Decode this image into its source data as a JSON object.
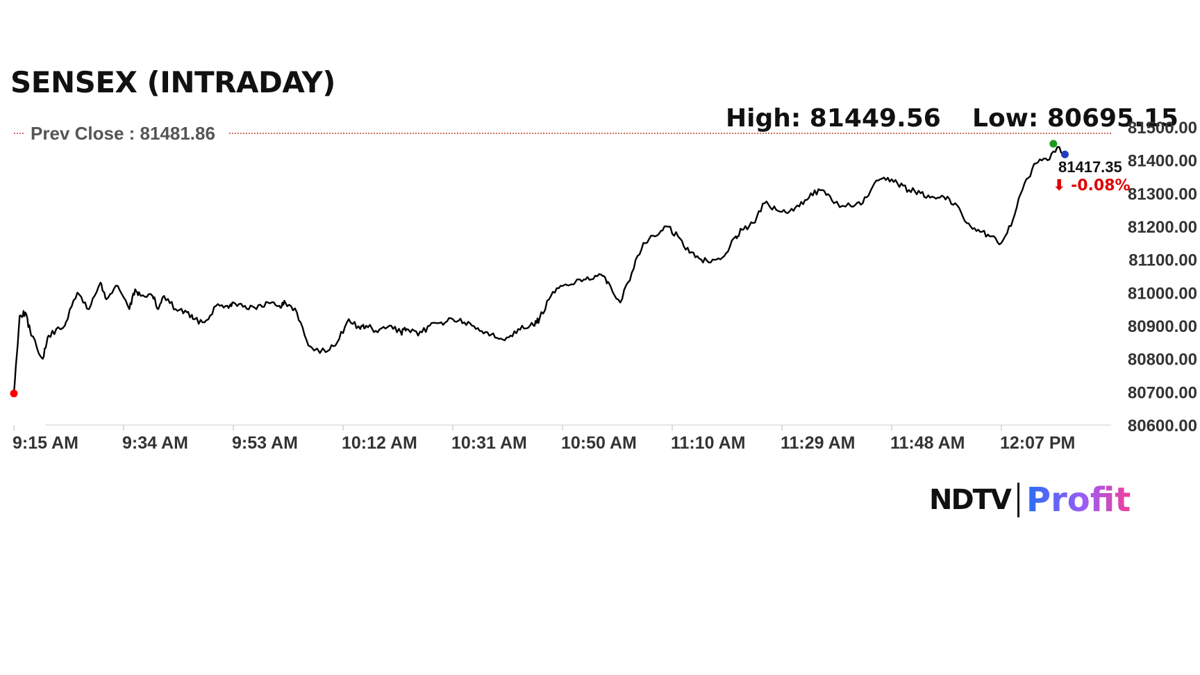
{
  "title": "SENSEX (INTRADAY)",
  "high_text": "High: 81449.56",
  "low_text": "Low: 80695.15",
  "logo": {
    "left": "NDTV",
    "right": "Profit"
  },
  "colors": {
    "line": "#000000",
    "prev_close": "#c0392b",
    "down": "#e00000",
    "start_dot": "#ff0000",
    "high_dot": "#1a9c1a",
    "last_dot": "#1f3fbf"
  },
  "chart_data": {
    "type": "line",
    "title": "SENSEX (INTRADAY)",
    "xlabel": "",
    "ylabel": "",
    "ylim": [
      80600,
      81500
    ],
    "y_ticks": [
      81500,
      81400,
      81300,
      81200,
      81100,
      81000,
      80900,
      80800,
      80700,
      80600
    ],
    "y_tick_labels": [
      "81500.00",
      "81400.00",
      "81300.00",
      "81200.00",
      "81100.00",
      "81000.00",
      "80900.00",
      "80800.00",
      "80700.00",
      "80600.00"
    ],
    "x_tick_labels": [
      "9:15 AM",
      "9:34 AM",
      "9:53 AM",
      "10:12 AM",
      "10:31 AM",
      "10:50 AM",
      "11:10 AM",
      "11:29 AM",
      "11:48 AM",
      "12:07 PM"
    ],
    "prev_close": 81481.86,
    "prev_close_label": "Prev Close : 81481.86",
    "last_value": 81417.35,
    "last_value_label": "81417.35",
    "change_label": "⬇ -0.08%",
    "x_unit": "minutes after 9:15 AM",
    "x": [
      0,
      1,
      2,
      3,
      5,
      6,
      8,
      9,
      11,
      13,
      15,
      16,
      18,
      20,
      21,
      22,
      24,
      25,
      26,
      28,
      30,
      31,
      33,
      35,
      37,
      38,
      40,
      42,
      44,
      46,
      47,
      49,
      51,
      54,
      56,
      58,
      60,
      61,
      63,
      65,
      67,
      68,
      70,
      72,
      74,
      76,
      78,
      80,
      82,
      84,
      86,
      88,
      90,
      91,
      93,
      95,
      98,
      100,
      102,
      103,
      105,
      107,
      109,
      111,
      113,
      115,
      117,
      119,
      121,
      123,
      125,
      126,
      128,
      130,
      132,
      134,
      136,
      138,
      140,
      142,
      145,
      147,
      149,
      151,
      153,
      155,
      157,
      159,
      161,
      163,
      165,
      167,
      169,
      171,
      173,
      175,
      177,
      179,
      181,
      182
    ],
    "values": [
      80695,
      80930,
      80940,
      80870,
      80800,
      80870,
      80890,
      80910,
      81000,
      80950,
      81030,
      80980,
      81020,
      80950,
      81010,
      80990,
      80990,
      80950,
      80990,
      80950,
      80940,
      80920,
      80910,
      80960,
      80960,
      80970,
      80960,
      80950,
      80970,
      80960,
      80970,
      80940,
      80840,
      80820,
      80850,
      80920,
      80890,
      80900,
      80880,
      80900,
      80880,
      80890,
      80870,
      80900,
      80910,
      80920,
      80910,
      80890,
      80880,
      80860,
      80870,
      80900,
      80900,
      80920,
      80990,
      81020,
      81040,
      81040,
      81050,
      81030,
      80970,
      81060,
      81150,
      81170,
      81200,
      81170,
      81120,
      81100,
      81100,
      81110,
      81170,
      81190,
      81210,
      81270,
      81250,
      81240,
      81260,
      81300,
      81310,
      81270,
      81260,
      81270,
      81330,
      81340,
      81330,
      81310,
      81300,
      81290,
      81290,
      81270,
      81210,
      81190,
      81170,
      81150,
      81220,
      81330,
      81390,
      81400,
      81440,
      81417
    ],
    "high_point": {
      "x": 180,
      "value": 81449.56
    },
    "low_point": {
      "x": 0,
      "value": 80695.15
    }
  }
}
